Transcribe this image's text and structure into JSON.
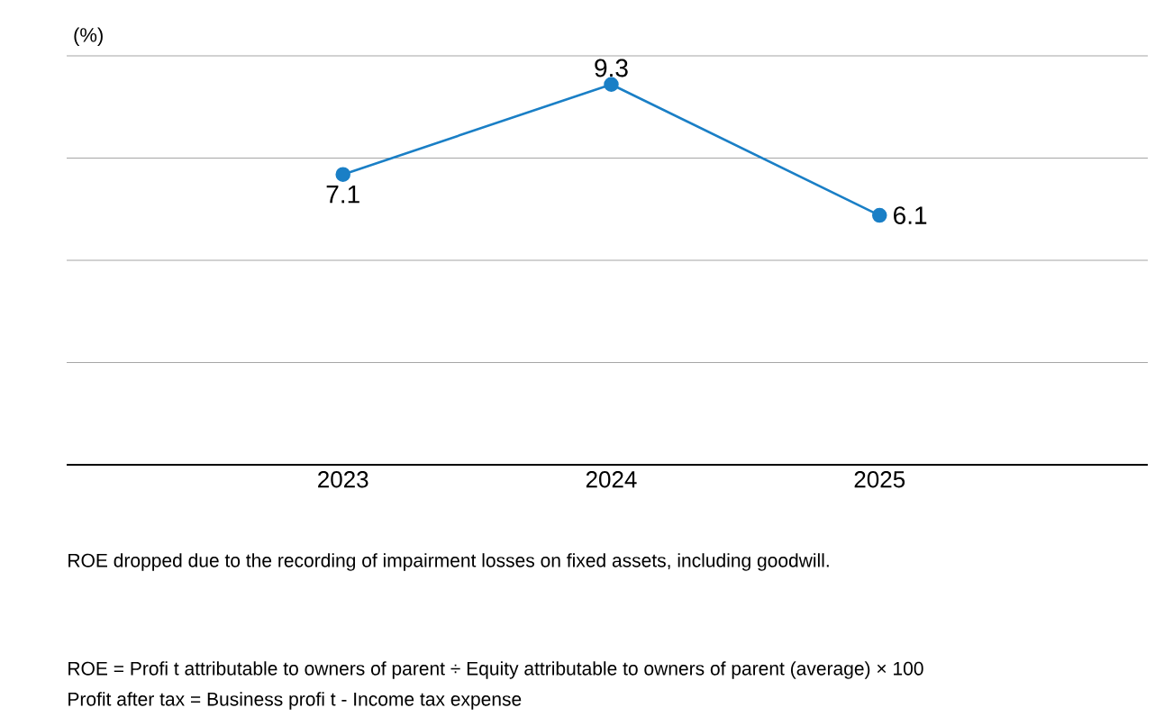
{
  "chart_data": {
    "type": "line",
    "ylabel": "(%)",
    "categories": [
      "2023",
      "2024",
      "2025"
    ],
    "series": [
      {
        "color": "#1a7fc6",
        "values": [
          7.1,
          9.3,
          6.1
        ]
      }
    ],
    "ylim": [
      0,
      10
    ],
    "yticks": [
      {
        "value": 0,
        "label": null
      },
      {
        "value": 2.5,
        "label": null
      },
      {
        "value": 5,
        "label": null
      },
      {
        "value": 7.5,
        "label": null
      },
      {
        "value": 10,
        "label": null
      }
    ],
    "tick_labels": "x",
    "grid": "y",
    "marker": "circle",
    "data_labels": true,
    "annotations": [
      "ROE dropped due to the recording of impairment losses on fixed assets, including goodwill.",
      "ROE = Profi t attributable to owners of parent ÷ Equity attributable to owners of parent (average) × 100",
      "Profit after tax = Business profi t - Income tax expense"
    ]
  }
}
